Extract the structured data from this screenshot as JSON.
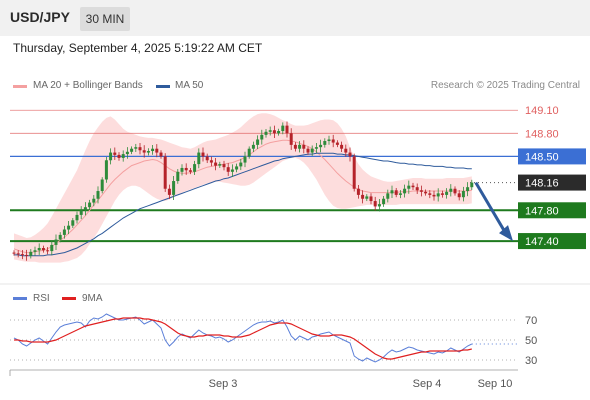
{
  "header": {
    "symbol": "USD/JPY",
    "timeframe": "30 MIN"
  },
  "datetime": "Thursday, September 4, 2025 5:19:22 AM CET",
  "legend": {
    "bollinger": "MA 20 + Bollinger Bands",
    "ma50": "MA 50"
  },
  "copyright": "Research © 2025 Trading Central",
  "rsi_legend": {
    "rsi": "RSI",
    "ma": "9MA"
  },
  "colors": {
    "up_candle": "#2e8b3a",
    "down_candle": "#b5232a",
    "bollinger_fill": "#fdd9d9",
    "ma20": "#f4a0a0",
    "ma50": "#2f5b9c",
    "resistance": "#e06060",
    "current": "#3b6fd4",
    "support": "#1e7a1e",
    "price_box": "#2b2b2b",
    "arrow": "#2f5b9c",
    "rsi": "#5b7fd8",
    "rsi_ma": "#e02020"
  },
  "chart_data": [
    {
      "type": "candlestick",
      "y_range": [
        147.05,
        149.22
      ],
      "x_ticks": [
        "Sep 3",
        "Sep 4",
        "Sep 10"
      ],
      "levels": [
        {
          "value": 149.1,
          "label": "149.10",
          "kind": "resistance"
        },
        {
          "value": 148.8,
          "label": "148.80",
          "kind": "resistance"
        },
        {
          "value": 148.5,
          "label": "148.50",
          "kind": "current-level"
        },
        {
          "value": 148.16,
          "label": "148.16",
          "kind": "last-price"
        },
        {
          "value": 147.8,
          "label": "147.80",
          "kind": "support"
        },
        {
          "value": 147.4,
          "label": "147.40",
          "kind": "support"
        }
      ],
      "forecast": {
        "from": 148.16,
        "to": 147.4
      },
      "close_series": [
        147.24,
        147.23,
        147.22,
        147.21,
        147.26,
        147.28,
        147.31,
        147.28,
        147.27,
        147.35,
        147.42,
        147.48,
        147.55,
        147.6,
        147.67,
        147.74,
        147.8,
        147.84,
        147.9,
        147.95,
        148.05,
        148.2,
        148.45,
        148.55,
        148.52,
        148.48,
        148.53,
        148.56,
        148.6,
        148.62,
        148.58,
        148.55,
        148.57,
        148.6,
        148.55,
        148.5,
        148.08,
        148.0,
        148.18,
        148.3,
        148.35,
        148.32,
        148.3,
        148.4,
        148.55,
        148.5,
        148.45,
        148.42,
        148.38,
        148.4,
        148.36,
        148.3,
        148.33,
        148.37,
        148.42,
        148.5,
        148.6,
        148.65,
        148.72,
        148.78,
        148.82,
        148.84,
        148.8,
        148.83,
        148.9,
        148.8,
        148.65,
        148.6,
        148.65,
        148.6,
        148.55,
        148.6,
        148.62,
        148.65,
        148.7,
        148.72,
        148.68,
        148.65,
        148.6,
        148.55,
        148.5,
        148.08,
        148.0,
        147.95,
        147.98,
        147.92,
        147.85,
        147.88,
        147.95,
        148.02,
        148.06,
        148.0,
        148.02,
        148.08,
        148.12,
        148.1,
        148.06,
        148.04,
        148.02,
        148.0,
        147.98,
        148.02,
        148.0,
        148.04,
        148.08,
        148.02,
        147.97,
        148.05,
        148.1,
        148.16
      ],
      "ma20_series": [
        147.3,
        147.28,
        147.26,
        147.25,
        147.25,
        147.26,
        147.27,
        147.28,
        147.3,
        147.33,
        147.37,
        147.41,
        147.45,
        147.5,
        147.55,
        147.61,
        147.67,
        147.73,
        147.8,
        147.87,
        147.93,
        148.0,
        148.07,
        148.14,
        148.2,
        148.25,
        148.3,
        148.34,
        148.38,
        148.4,
        148.42,
        148.44,
        148.45,
        148.46,
        148.45,
        148.42,
        148.38,
        148.34,
        148.31,
        148.29,
        148.28,
        148.28,
        148.29,
        148.3,
        148.32,
        148.34,
        148.36,
        148.37,
        148.38,
        148.39,
        148.4,
        148.41,
        148.42,
        148.44,
        148.46,
        148.49,
        148.52,
        148.56,
        148.6,
        148.63,
        148.66,
        148.68,
        148.69,
        148.7,
        148.71,
        148.71,
        148.7,
        148.69,
        148.67,
        148.65,
        148.63,
        148.6,
        148.56,
        148.51,
        148.46,
        148.4,
        148.34,
        148.28,
        148.23,
        148.18,
        148.14,
        148.1,
        148.07,
        148.05,
        148.04,
        148.03,
        148.03,
        148.03,
        148.03,
        148.03,
        148.03,
        148.03,
        148.04,
        148.04,
        148.04,
        148.05,
        148.05,
        148.05,
        148.05,
        148.05,
        148.05,
        148.05,
        148.05,
        148.05,
        148.05,
        148.05,
        148.05,
        148.05,
        148.05,
        148.06
      ],
      "bb_upper": [
        147.5,
        147.48,
        147.46,
        147.44,
        147.45,
        147.48,
        147.52,
        147.57,
        147.63,
        147.72,
        147.82,
        147.92,
        148.02,
        148.12,
        148.22,
        148.32,
        148.45,
        148.58,
        148.7,
        148.8,
        148.88,
        148.95,
        149.0,
        149.02,
        148.98,
        148.92,
        148.86,
        148.82,
        148.8,
        148.78,
        148.76,
        148.75,
        148.74,
        148.74,
        148.73,
        148.72,
        148.7,
        148.68,
        148.66,
        148.64,
        148.62,
        148.61,
        148.6,
        148.62,
        148.65,
        148.68,
        148.7,
        148.71,
        148.72,
        148.74,
        148.76,
        148.78,
        148.81,
        148.84,
        148.88,
        148.93,
        148.98,
        149.02,
        149.05,
        149.06,
        149.06,
        149.05,
        149.03,
        149.0,
        148.97,
        148.95,
        148.92,
        148.9,
        148.9,
        148.9,
        148.91,
        148.93,
        148.95,
        148.97,
        148.98,
        148.98,
        148.97,
        148.93,
        148.86,
        148.76,
        148.62,
        148.5,
        148.4,
        148.33,
        148.28,
        148.24,
        148.22,
        148.2,
        148.18,
        148.17,
        148.17,
        148.18,
        148.19,
        148.2,
        148.21,
        148.22,
        148.22,
        148.22,
        148.21,
        148.21,
        148.21,
        148.21,
        148.21,
        148.22,
        148.22,
        148.22,
        148.22,
        148.22,
        148.23,
        148.24
      ],
      "bb_lower": [
        147.16,
        147.15,
        147.14,
        147.13,
        147.13,
        147.13,
        147.12,
        147.12,
        147.12,
        147.12,
        147.12,
        147.12,
        147.13,
        147.14,
        147.16,
        147.18,
        147.22,
        147.28,
        147.36,
        147.44,
        147.52,
        147.62,
        147.72,
        147.82,
        147.92,
        148.0,
        148.06,
        148.1,
        148.12,
        148.12,
        148.1,
        148.06,
        148.02,
        147.98,
        147.95,
        147.93,
        147.92,
        147.94,
        147.97,
        148.0,
        148.03,
        148.05,
        148.07,
        148.09,
        148.11,
        148.13,
        148.15,
        148.16,
        148.17,
        148.17,
        148.16,
        148.15,
        148.14,
        148.13,
        148.12,
        148.12,
        148.13,
        148.16,
        148.2,
        148.24,
        148.28,
        148.32,
        148.36,
        148.4,
        148.44,
        148.46,
        148.48,
        148.48,
        148.46,
        148.42,
        148.36,
        148.28,
        148.2,
        148.1,
        148.0,
        147.92,
        147.86,
        147.83,
        147.82,
        147.82,
        147.83,
        147.84,
        147.85,
        147.86,
        147.87,
        147.87,
        147.87,
        147.87,
        147.87,
        147.87,
        147.87,
        147.87,
        147.88,
        147.88,
        147.88,
        147.88,
        147.88,
        147.88,
        147.88,
        147.88,
        147.88,
        147.88,
        147.88,
        147.88,
        147.88,
        147.88,
        147.88,
        147.88,
        147.88,
        147.89
      ],
      "ma50_series": [
        147.22,
        147.22,
        147.21,
        147.21,
        147.21,
        147.21,
        147.21,
        147.21,
        147.22,
        147.22,
        147.23,
        147.24,
        147.25,
        147.27,
        147.29,
        147.31,
        147.34,
        147.37,
        147.4,
        147.43,
        147.47,
        147.5,
        147.54,
        147.58,
        147.62,
        147.66,
        147.7,
        147.73,
        147.76,
        147.79,
        147.82,
        147.84,
        147.86,
        147.88,
        147.9,
        147.92,
        147.94,
        147.96,
        147.98,
        148.0,
        148.02,
        148.04,
        148.06,
        148.08,
        148.1,
        148.12,
        148.14,
        148.16,
        148.18,
        148.19,
        148.21,
        148.22,
        148.24,
        148.26,
        148.28,
        148.3,
        148.32,
        148.34,
        148.36,
        148.38,
        148.4,
        148.42,
        148.44,
        148.45,
        148.47,
        148.48,
        148.49,
        148.5,
        148.51,
        148.52,
        148.53,
        148.53,
        148.54,
        148.54,
        148.54,
        148.54,
        148.54,
        148.53,
        148.53,
        148.52,
        148.52,
        148.51,
        148.5,
        148.49,
        148.48,
        148.47,
        148.46,
        148.45,
        148.44,
        148.44,
        148.43,
        148.42,
        148.41,
        148.41,
        148.4,
        148.4,
        148.39,
        148.39,
        148.38,
        148.38,
        148.37,
        148.37,
        148.37,
        148.36,
        148.36,
        148.35,
        148.35,
        148.35,
        148.34,
        148.34
      ]
    },
    {
      "type": "line",
      "y_range": [
        20,
        80
      ],
      "y_ticks": [
        70,
        50,
        30
      ],
      "series": [
        {
          "name": "RSI",
          "values": [
            52,
            50,
            46,
            44,
            47,
            50,
            52,
            49,
            46,
            52,
            58,
            63,
            65,
            66,
            67,
            68,
            67,
            63,
            69,
            72,
            71,
            73,
            76,
            74,
            72,
            70,
            70,
            71,
            72,
            73,
            70,
            66,
            68,
            70,
            66,
            62,
            50,
            44,
            48,
            53,
            56,
            54,
            52,
            56,
            60,
            57,
            55,
            54,
            52,
            53,
            51,
            48,
            50,
            53,
            56,
            59,
            62,
            65,
            67,
            68,
            68,
            69,
            67,
            68,
            70,
            63,
            54,
            50,
            54,
            52,
            50,
            53,
            54,
            56,
            57,
            58,
            55,
            53,
            51,
            49,
            47,
            34,
            31,
            29,
            32,
            30,
            28,
            30,
            33,
            37,
            40,
            38,
            39,
            41,
            43,
            42,
            40,
            39,
            38,
            37,
            36,
            38,
            37,
            39,
            42,
            40,
            38,
            41,
            44,
            46
          ]
        },
        {
          "name": "9MA",
          "values": [
            50,
            50,
            49,
            49,
            48,
            48,
            48,
            48,
            48,
            49,
            50,
            52,
            54,
            56,
            58,
            60,
            62,
            64,
            65,
            66,
            67,
            68,
            69,
            70,
            71,
            71,
            72,
            72,
            72,
            72,
            72,
            71,
            71,
            70,
            69,
            68,
            66,
            63,
            60,
            57,
            55,
            54,
            53,
            53,
            54,
            54,
            55,
            55,
            55,
            55,
            54,
            54,
            53,
            53,
            53,
            54,
            55,
            57,
            59,
            61,
            63,
            65,
            66,
            67,
            67,
            67,
            66,
            64,
            62,
            60,
            58,
            56,
            55,
            54,
            54,
            54,
            55,
            55,
            55,
            54,
            53,
            51,
            48,
            45,
            42,
            39,
            36,
            34,
            32,
            31,
            31,
            32,
            33,
            34,
            35,
            36,
            37,
            38,
            38,
            39,
            39,
            39,
            39,
            39,
            39,
            39,
            39,
            40,
            40,
            41
          ]
        }
      ]
    }
  ]
}
